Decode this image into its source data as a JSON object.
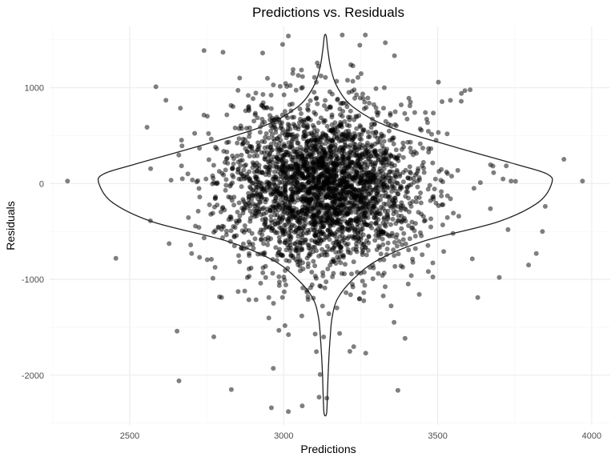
{
  "chart_data": {
    "type": "scatter",
    "overlay": "violin",
    "title": "Predictions vs. Residuals",
    "xlabel": "Predictions",
    "ylabel": "Residuals",
    "xlim": [
      2240,
      4060
    ],
    "ylim": [
      -2520,
      1640
    ],
    "x_ticks": [
      2500,
      3000,
      3500,
      4000
    ],
    "x_tick_labels": [
      "2500",
      "3000",
      "3500",
      "4000"
    ],
    "y_ticks": [
      -2000,
      -1000,
      0,
      1000
    ],
    "y_tick_labels": [
      "-2000",
      "-1000",
      "0",
      "1000"
    ],
    "grid": true,
    "point_color": "#000000",
    "point_opacity": 0.5,
    "point_count": 3000,
    "center_x": 3130,
    "spread_x": 150,
    "spread_y": 380,
    "violin_center_x": 3135,
    "violin_profile": [
      {
        "y": -2400,
        "hw": 4
      },
      {
        "y": -2200,
        "hw": 7
      },
      {
        "y": -2000,
        "hw": 9
      },
      {
        "y": -1800,
        "hw": 12
      },
      {
        "y": -1600,
        "hw": 16
      },
      {
        "y": -1400,
        "hw": 22
      },
      {
        "y": -1200,
        "hw": 40
      },
      {
        "y": -1000,
        "hw": 90
      },
      {
        "y": -800,
        "hw": 170
      },
      {
        "y": -600,
        "hw": 320
      },
      {
        "y": -400,
        "hw": 560
      },
      {
        "y": -200,
        "hw": 690
      },
      {
        "y": 0,
        "hw": 735
      },
      {
        "y": 100,
        "hw": 720
      },
      {
        "y": 200,
        "hw": 620
      },
      {
        "y": 400,
        "hw": 400
      },
      {
        "y": 600,
        "hw": 200
      },
      {
        "y": 800,
        "hw": 90
      },
      {
        "y": 1000,
        "hw": 40
      },
      {
        "y": 1200,
        "hw": 18
      },
      {
        "y": 1400,
        "hw": 8
      },
      {
        "y": 1540,
        "hw": 3
      }
    ],
    "outliers": [
      {
        "x": 2298,
        "y": 25
      },
      {
        "x": 2455,
        "y": -780
      },
      {
        "x": 2585,
        "y": 1010
      },
      {
        "x": 2660,
        "y": -2060
      },
      {
        "x": 2773,
        "y": -1600
      },
      {
        "x": 2830,
        "y": -2150
      },
      {
        "x": 2803,
        "y": 1370
      },
      {
        "x": 3015,
        "y": 1540
      },
      {
        "x": 3190,
        "y": 1550
      },
      {
        "x": 3265,
        "y": 1550
      },
      {
        "x": 3330,
        "y": 1470
      },
      {
        "x": 3577,
        "y": 940
      },
      {
        "x": 3738,
        "y": 25
      },
      {
        "x": 3970,
        "y": 25
      },
      {
        "x": 3840,
        "y": -500
      },
      {
        "x": 3820,
        "y": -730
      },
      {
        "x": 3795,
        "y": -850
      },
      {
        "x": 3700,
        "y": -980
      },
      {
        "x": 3630,
        "y": -1190
      },
      {
        "x": 3060,
        "y": -2320
      },
      {
        "x": 3015,
        "y": -2380
      },
      {
        "x": 3115,
        "y": -2230
      },
      {
        "x": 3140,
        "y": -2240
      },
      {
        "x": 2960,
        "y": -2340
      }
    ]
  }
}
